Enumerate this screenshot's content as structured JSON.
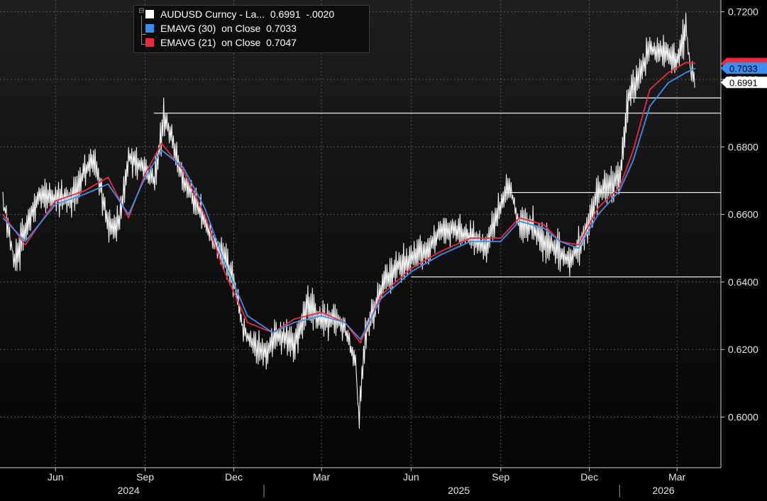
{
  "legend": {
    "expand_icon": "⊟",
    "rows": [
      {
        "label": "AUDUSD Curncy - La...  0.6991  -.0020",
        "color": "#ffffff"
      },
      {
        "label": "EMAVG (30)  on Close  0.7033",
        "color": "#3d8ef0"
      },
      {
        "label": "EMAVG (21)  on Close  0.7047",
        "color": "#ee2a3d"
      }
    ]
  },
  "chart_data": {
    "type": "line",
    "title": "",
    "xlabel": "",
    "ylabel": "",
    "ylim": [
      0.585,
      0.7235
    ],
    "x_range": [
      "2024-04-05",
      "2026-04-15"
    ],
    "y_ticks": [
      "0.6000",
      "0.6200",
      "0.6400",
      "0.6600",
      "0.6800",
      "0.7000",
      "0.7200"
    ],
    "x_tick_labels": [
      {
        "label": "Jun",
        "date": "2024-06-01"
      },
      {
        "label": "Sep",
        "date": "2024-09-01"
      },
      {
        "label": "Dec",
        "date": "2024-12-01"
      },
      {
        "label": "Mar",
        "date": "2025-03-01"
      },
      {
        "label": "Jun",
        "date": "2025-06-01"
      },
      {
        "label": "Sep",
        "date": "2025-09-01"
      },
      {
        "label": "Dec",
        "date": "2025-12-01"
      },
      {
        "label": "Mar",
        "date": "2026-03-01"
      }
    ],
    "year_labels": [
      {
        "label": "2024",
        "date": "2024-08-15"
      },
      {
        "label": "2025",
        "date": "2025-07-20"
      },
      {
        "label": "2026",
        "date": "2026-02-15"
      }
    ],
    "year_dividers": [
      "2025-01-01",
      "2026-01-01"
    ],
    "grid": true,
    "legend_position": "top-left",
    "series": [
      {
        "name": "AUDUSD Curncy - Last Price",
        "color": "#ffffff",
        "x": [
          "2024-04-08",
          "2024-04-20",
          "2024-05-01",
          "2024-05-15",
          "2024-06-01",
          "2024-06-15",
          "2024-07-01",
          "2024-07-10",
          "2024-07-25",
          "2024-08-05",
          "2024-08-15",
          "2024-08-28",
          "2024-09-10",
          "2024-09-20",
          "2024-09-30",
          "2024-10-10",
          "2024-10-25",
          "2024-11-10",
          "2024-11-20",
          "2024-12-01",
          "2024-12-10",
          "2024-12-20",
          "2025-01-01",
          "2025-01-15",
          "2025-02-01",
          "2025-02-15",
          "2025-03-01",
          "2025-03-15",
          "2025-03-25",
          "2025-04-05",
          "2025-04-08",
          "2025-04-15",
          "2025-05-01",
          "2025-05-15",
          "2025-06-01",
          "2025-06-15",
          "2025-07-01",
          "2025-07-15",
          "2025-08-01",
          "2025-08-15",
          "2025-08-28",
          "2025-09-10",
          "2025-09-20",
          "2025-10-01",
          "2025-10-15",
          "2025-10-28",
          "2025-11-10",
          "2025-11-25",
          "2025-12-10",
          "2025-12-20",
          "2026-01-01",
          "2026-01-10",
          "2026-01-20",
          "2026-02-01",
          "2026-02-15",
          "2026-03-01",
          "2026-03-10",
          "2026-03-15",
          "2026-03-20"
        ],
        "values": [
          0.664,
          0.645,
          0.656,
          0.666,
          0.665,
          0.664,
          0.673,
          0.677,
          0.656,
          0.658,
          0.677,
          0.674,
          0.67,
          0.689,
          0.68,
          0.67,
          0.662,
          0.652,
          0.648,
          0.64,
          0.626,
          0.622,
          0.619,
          0.624,
          0.622,
          0.634,
          0.628,
          0.63,
          0.626,
          0.615,
          0.6,
          0.625,
          0.638,
          0.644,
          0.647,
          0.649,
          0.655,
          0.656,
          0.653,
          0.65,
          0.66,
          0.669,
          0.656,
          0.657,
          0.652,
          0.65,
          0.646,
          0.653,
          0.667,
          0.668,
          0.671,
          0.695,
          0.7,
          0.709,
          0.708,
          0.706,
          0.715,
          0.702,
          0.6991
        ]
      },
      {
        "name": "EMAVG (30) on Close",
        "color": "#3d8ef0",
        "x": [
          "2024-04-08",
          "2024-05-01",
          "2024-06-01",
          "2024-07-01",
          "2024-07-25",
          "2024-08-15",
          "2024-09-01",
          "2024-09-18",
          "2024-10-10",
          "2024-11-01",
          "2024-11-20",
          "2024-12-15",
          "2025-01-10",
          "2025-02-01",
          "2025-03-01",
          "2025-03-25",
          "2025-04-10",
          "2025-05-01",
          "2025-06-01",
          "2025-07-01",
          "2025-08-01",
          "2025-09-01",
          "2025-09-20",
          "2025-10-15",
          "2025-11-01",
          "2025-11-20",
          "2025-12-10",
          "2026-01-01",
          "2026-01-15",
          "2026-02-01",
          "2026-02-20",
          "2026-03-10",
          "2026-03-20"
        ],
        "values": [
          0.659,
          0.652,
          0.663,
          0.666,
          0.669,
          0.66,
          0.671,
          0.679,
          0.674,
          0.662,
          0.647,
          0.63,
          0.625,
          0.628,
          0.63,
          0.628,
          0.623,
          0.635,
          0.643,
          0.648,
          0.652,
          0.652,
          0.658,
          0.656,
          0.652,
          0.65,
          0.66,
          0.667,
          0.676,
          0.692,
          0.699,
          0.702,
          0.7033
        ]
      },
      {
        "name": "EMAVG (21) on Close",
        "color": "#ee2a3d",
        "x": [
          "2024-04-08",
          "2024-05-01",
          "2024-06-01",
          "2024-07-01",
          "2024-07-25",
          "2024-08-15",
          "2024-09-01",
          "2024-09-18",
          "2024-10-10",
          "2024-11-01",
          "2024-11-20",
          "2024-12-15",
          "2025-01-10",
          "2025-02-01",
          "2025-03-01",
          "2025-03-25",
          "2025-04-10",
          "2025-05-01",
          "2025-06-01",
          "2025-07-01",
          "2025-08-01",
          "2025-09-01",
          "2025-09-20",
          "2025-10-15",
          "2025-11-01",
          "2025-11-20",
          "2025-12-10",
          "2026-01-01",
          "2026-01-15",
          "2026-02-01",
          "2026-02-20",
          "2026-03-10",
          "2026-03-20"
        ],
        "values": [
          0.66,
          0.651,
          0.664,
          0.667,
          0.671,
          0.659,
          0.672,
          0.681,
          0.673,
          0.66,
          0.644,
          0.628,
          0.625,
          0.629,
          0.631,
          0.628,
          0.622,
          0.636,
          0.644,
          0.649,
          0.653,
          0.653,
          0.659,
          0.657,
          0.652,
          0.651,
          0.662,
          0.668,
          0.679,
          0.697,
          0.702,
          0.705,
          0.7047
        ]
      }
    ],
    "reference_lines": [
      {
        "y": 0.6945,
        "from": "2026-01-10",
        "to": "2026-04-15"
      },
      {
        "y": 0.69,
        "from": "2024-09-10",
        "to": "2026-04-15"
      },
      {
        "y": 0.6665,
        "from": "2025-09-05",
        "to": "2026-04-15"
      },
      {
        "y": 0.6415,
        "from": "2025-06-01",
        "to": "2026-04-15"
      }
    ],
    "price_tags": [
      {
        "value": 0.7047,
        "label": "",
        "bg": "#ee2a3d",
        "fg": "#ffffff"
      },
      {
        "value": 0.7033,
        "label": "0.7033",
        "bg": "#3d8ef0",
        "fg": "#000000"
      },
      {
        "value": 0.6991,
        "label": "0.6991",
        "bg": "#ffffff",
        "fg": "#000000"
      }
    ]
  }
}
